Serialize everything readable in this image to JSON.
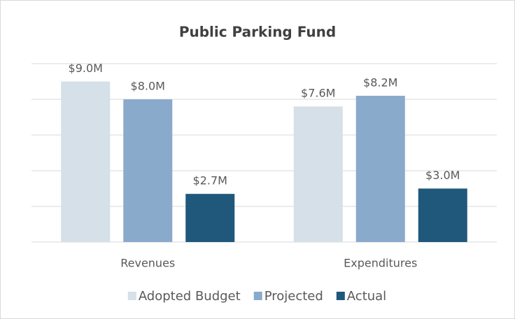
{
  "chart_data": {
    "type": "bar",
    "title": "Public Parking Fund",
    "categories": [
      "Revenues",
      "Expenditures"
    ],
    "series": [
      {
        "name": "Adopted Budget",
        "color": "#d5e0e8",
        "values": [
          9.0,
          7.6
        ],
        "value_labels": [
          "$9.0M",
          "$7.6M"
        ]
      },
      {
        "name": "Projected",
        "color": "#8aaacc",
        "values": [
          8.0,
          8.2
        ],
        "value_labels": [
          "$8.0M",
          "$8.2M"
        ]
      },
      {
        "name": "Actual",
        "color": "#1f587b",
        "values": [
          2.7,
          3.0
        ],
        "value_labels": [
          "$2.7M",
          "$3.0M"
        ]
      }
    ],
    "ylim": [
      0,
      10
    ],
    "yticks": [
      0,
      2,
      4,
      6,
      8,
      10
    ],
    "grid": true,
    "legend": "bottom"
  }
}
